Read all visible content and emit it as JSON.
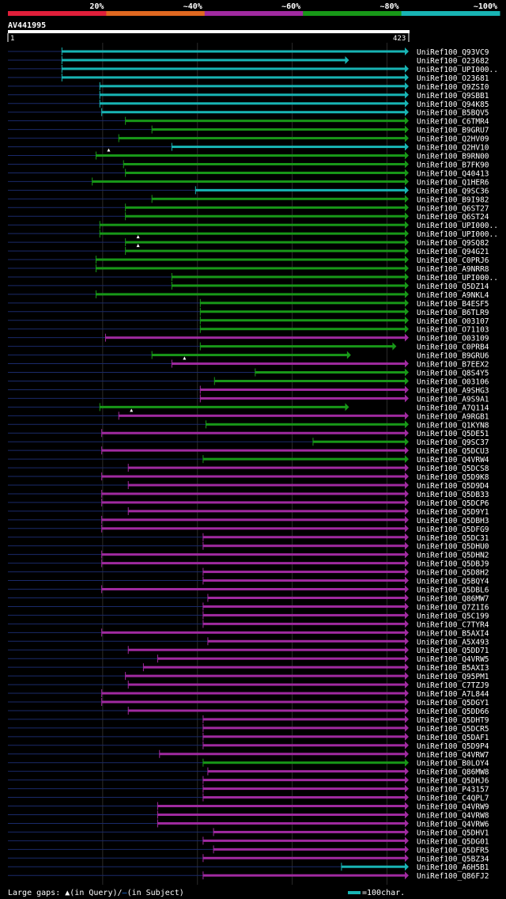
{
  "query": {
    "id": "AV441995",
    "start": "1",
    "end": "423",
    "length": 423
  },
  "identity_scale": {
    "labels": [
      "20%",
      "~40%",
      "~60%",
      "~80%",
      "~100%"
    ],
    "colors": [
      "#e01f3a",
      "#e06820",
      "#a02aa0",
      "#189818",
      "#18b4b4"
    ]
  },
  "legend": {
    "gaps_text": "Large gaps: ",
    "in_query": "(in Query)",
    "slash": "/",
    "in_subject": "(in Subject)",
    "scale_text": "=100char."
  },
  "hits": [
    {
      "name": "UniRef100_Q93VC9",
      "start": 57,
      "end": 423,
      "color": "cyan"
    },
    {
      "name": "UniRef100_O23682",
      "start": 57,
      "end": 360,
      "color": "cyan"
    },
    {
      "name": "UniRef100_UPI000..",
      "start": 57,
      "end": 423,
      "color": "cyan"
    },
    {
      "name": "UniRef100_O23681",
      "start": 57,
      "end": 423,
      "color": "cyan"
    },
    {
      "name": "UniRef100_Q9ZSI0",
      "start": 97,
      "end": 423,
      "color": "cyan"
    },
    {
      "name": "UniRef100_Q9SBB1",
      "start": 97,
      "end": 423,
      "color": "cyan"
    },
    {
      "name": "UniRef100_Q94K85",
      "start": 97,
      "end": 423,
      "color": "cyan"
    },
    {
      "name": "UniRef100_B5BQV5",
      "start": 99,
      "end": 423,
      "color": "cyan"
    },
    {
      "name": "UniRef100_C6TMR4",
      "start": 124,
      "end": 423,
      "color": "green"
    },
    {
      "name": "UniRef100_B9GRU7",
      "start": 152,
      "end": 423,
      "color": "green"
    },
    {
      "name": "UniRef100_Q2HV09",
      "start": 117,
      "end": 423,
      "color": "green"
    },
    {
      "name": "UniRef100_Q2HV10",
      "start": 173,
      "end": 423,
      "color": "cyan"
    },
    {
      "name": "UniRef100_B9RN00",
      "start": 93,
      "end": 423,
      "color": "green"
    },
    {
      "name": "UniRef100_B7FK90",
      "start": 122,
      "end": 423,
      "color": "green"
    },
    {
      "name": "UniRef100_Q40413",
      "start": 124,
      "end": 423,
      "color": "green"
    },
    {
      "name": "UniRef100_Q1HER6",
      "start": 89,
      "end": 423,
      "color": "green"
    },
    {
      "name": "UniRef100_Q9SC36",
      "start": 198,
      "end": 423,
      "color": "cyan"
    },
    {
      "name": "UniRef100_B9I982",
      "start": 152,
      "end": 423,
      "color": "green"
    },
    {
      "name": "UniRef100_Q6ST27",
      "start": 124,
      "end": 423,
      "color": "green"
    },
    {
      "name": "UniRef100_Q6ST24",
      "start": 124,
      "end": 423,
      "color": "green"
    },
    {
      "name": "UniRef100_UPI000..",
      "start": 97,
      "end": 423,
      "color": "green"
    },
    {
      "name": "UniRef100_UPI000..",
      "start": 97,
      "end": 423,
      "color": "green"
    },
    {
      "name": "UniRef100_Q9SQ82",
      "start": 124,
      "end": 423,
      "color": "green"
    },
    {
      "name": "UniRef100_Q94G21",
      "start": 124,
      "end": 423,
      "color": "green"
    },
    {
      "name": "UniRef100_C0PRJ6",
      "start": 93,
      "end": 423,
      "color": "green"
    },
    {
      "name": "UniRef100_A9NRR8",
      "start": 93,
      "end": 423,
      "color": "green"
    },
    {
      "name": "UniRef100_UPI000..",
      "start": 173,
      "end": 423,
      "color": "green"
    },
    {
      "name": "UniRef100_Q5DZ14",
      "start": 173,
      "end": 423,
      "color": "green"
    },
    {
      "name": "UniRef100_A9NKL4",
      "start": 93,
      "end": 423,
      "color": "green"
    },
    {
      "name": "UniRef100_B4ESF5",
      "start": 203,
      "end": 423,
      "color": "green"
    },
    {
      "name": "UniRef100_B6TLR9",
      "start": 203,
      "end": 423,
      "color": "green"
    },
    {
      "name": "UniRef100_O03107",
      "start": 203,
      "end": 423,
      "color": "green"
    },
    {
      "name": "UniRef100_O71103",
      "start": 203,
      "end": 423,
      "color": "green"
    },
    {
      "name": "UniRef100_O03109",
      "start": 103,
      "end": 423,
      "color": "purple"
    },
    {
      "name": "UniRef100_C0PRB4",
      "start": 203,
      "end": 410,
      "color": "green"
    },
    {
      "name": "UniRef100_B9GRU6",
      "start": 152,
      "end": 362,
      "color": "green"
    },
    {
      "name": "UniRef100_B7EEX2",
      "start": 173,
      "end": 423,
      "color": "purple"
    },
    {
      "name": "UniRef100_Q8S4Y5",
      "start": 261,
      "end": 423,
      "color": "green"
    },
    {
      "name": "UniRef100_O03106",
      "start": 218,
      "end": 423,
      "color": "green"
    },
    {
      "name": "UniRef100_A9SHG3",
      "start": 203,
      "end": 423,
      "color": "purple"
    },
    {
      "name": "UniRef100_A9S9A1",
      "start": 203,
      "end": 423,
      "color": "purple"
    },
    {
      "name": "UniRef100_A7Q114",
      "start": 97,
      "end": 360,
      "color": "green"
    },
    {
      "name": "UniRef100_A9RGB1",
      "start": 117,
      "end": 423,
      "color": "purple"
    },
    {
      "name": "UniRef100_Q1KYN8",
      "start": 209,
      "end": 423,
      "color": "green"
    },
    {
      "name": "UniRef100_Q5DE51",
      "start": 99,
      "end": 423,
      "color": "purple"
    },
    {
      "name": "UniRef100_Q9SC37",
      "start": 322,
      "end": 423,
      "color": "green"
    },
    {
      "name": "UniRef100_Q5DCU3",
      "start": 99,
      "end": 423,
      "color": "purple"
    },
    {
      "name": "UniRef100_Q4VRW4",
      "start": 206,
      "end": 423,
      "color": "green"
    },
    {
      "name": "UniRef100_Q5DCS8",
      "start": 127,
      "end": 423,
      "color": "purple"
    },
    {
      "name": "UniRef100_Q5D9K8",
      "start": 99,
      "end": 423,
      "color": "purple"
    },
    {
      "name": "UniRef100_Q5D9D4",
      "start": 127,
      "end": 423,
      "color": "purple"
    },
    {
      "name": "UniRef100_Q5DB33",
      "start": 99,
      "end": 423,
      "color": "purple"
    },
    {
      "name": "UniRef100_Q5DCP6",
      "start": 99,
      "end": 423,
      "color": "purple"
    },
    {
      "name": "UniRef100_Q5D9Y1",
      "start": 127,
      "end": 423,
      "color": "purple"
    },
    {
      "name": "UniRef100_Q5DBH3",
      "start": 99,
      "end": 423,
      "color": "purple"
    },
    {
      "name": "UniRef100_Q5DFG9",
      "start": 99,
      "end": 423,
      "color": "purple"
    },
    {
      "name": "UniRef100_Q5DC31",
      "start": 206,
      "end": 423,
      "color": "purple"
    },
    {
      "name": "UniRef100_Q5DHU0",
      "start": 206,
      "end": 423,
      "color": "purple"
    },
    {
      "name": "UniRef100_Q5DHN2",
      "start": 99,
      "end": 423,
      "color": "purple"
    },
    {
      "name": "UniRef100_Q5DBJ9",
      "start": 99,
      "end": 423,
      "color": "purple"
    },
    {
      "name": "UniRef100_Q5D8H2",
      "start": 206,
      "end": 423,
      "color": "purple"
    },
    {
      "name": "UniRef100_Q5BQY4",
      "start": 206,
      "end": 423,
      "color": "purple"
    },
    {
      "name": "UniRef100_Q5DBL6",
      "start": 99,
      "end": 423,
      "color": "purple"
    },
    {
      "name": "UniRef100_Q86MW7",
      "start": 211,
      "end": 423,
      "color": "purple"
    },
    {
      "name": "UniRef100_Q7Z1I6",
      "start": 206,
      "end": 423,
      "color": "purple"
    },
    {
      "name": "UniRef100_Q5C199",
      "start": 206,
      "end": 423,
      "color": "purple"
    },
    {
      "name": "UniRef100_C7TYR4",
      "start": 206,
      "end": 423,
      "color": "purple"
    },
    {
      "name": "UniRef100_B5AXI4",
      "start": 99,
      "end": 423,
      "color": "purple"
    },
    {
      "name": "UniRef100_A5X493",
      "start": 211,
      "end": 423,
      "color": "purple"
    },
    {
      "name": "UniRef100_Q5DD71",
      "start": 127,
      "end": 423,
      "color": "purple"
    },
    {
      "name": "UniRef100_Q4VRW5",
      "start": 158,
      "end": 423,
      "color": "purple"
    },
    {
      "name": "UniRef100_B5AXI3",
      "start": 143,
      "end": 423,
      "color": "purple"
    },
    {
      "name": "UniRef100_Q95PM1",
      "start": 124,
      "end": 423,
      "color": "purple"
    },
    {
      "name": "UniRef100_C7TZJ9",
      "start": 127,
      "end": 423,
      "color": "purple"
    },
    {
      "name": "UniRef100_A7L844",
      "start": 99,
      "end": 423,
      "color": "purple"
    },
    {
      "name": "UniRef100_Q5DGY1",
      "start": 99,
      "end": 423,
      "color": "purple"
    },
    {
      "name": "UniRef100_Q5DD66",
      "start": 127,
      "end": 423,
      "color": "purple"
    },
    {
      "name": "UniRef100_Q5DHT9",
      "start": 206,
      "end": 423,
      "color": "purple"
    },
    {
      "name": "UniRef100_Q5DCR5",
      "start": 206,
      "end": 423,
      "color": "purple"
    },
    {
      "name": "UniRef100_Q5DAF1",
      "start": 206,
      "end": 423,
      "color": "purple"
    },
    {
      "name": "UniRef100_Q5D9P4",
      "start": 206,
      "end": 423,
      "color": "purple"
    },
    {
      "name": "UniRef100_Q4VRW7",
      "start": 160,
      "end": 423,
      "color": "purple"
    },
    {
      "name": "UniRef100_B0LOY4",
      "start": 206,
      "end": 423,
      "color": "green"
    },
    {
      "name": "UniRef100_Q86MW8",
      "start": 211,
      "end": 423,
      "color": "purple"
    },
    {
      "name": "UniRef100_Q5DHJ6",
      "start": 206,
      "end": 423,
      "color": "purple"
    },
    {
      "name": "UniRef100_P43157",
      "start": 206,
      "end": 423,
      "color": "purple"
    },
    {
      "name": "UniRef100_C4QPL7",
      "start": 206,
      "end": 423,
      "color": "purple"
    },
    {
      "name": "UniRef100_Q4VRW9",
      "start": 158,
      "end": 423,
      "color": "purple"
    },
    {
      "name": "UniRef100_Q4VRW8",
      "start": 158,
      "end": 423,
      "color": "purple"
    },
    {
      "name": "UniRef100_Q4VRW6",
      "start": 158,
      "end": 423,
      "color": "purple"
    },
    {
      "name": "UniRef100_Q5DHV1",
      "start": 217,
      "end": 423,
      "color": "purple"
    },
    {
      "name": "UniRef100_Q5DG01",
      "start": 206,
      "end": 423,
      "color": "purple"
    },
    {
      "name": "UniRef100_Q5DFR5",
      "start": 217,
      "end": 423,
      "color": "purple"
    },
    {
      "name": "UniRef100_Q5BZ34",
      "start": 206,
      "end": 423,
      "color": "purple"
    },
    {
      "name": "UniRef100_A6H5B1",
      "start": 352,
      "end": 423,
      "color": "cyan"
    },
    {
      "name": "UniRef100_Q86FJ2",
      "start": 206,
      "end": 423,
      "color": "purple"
    }
  ],
  "hit_colors": {
    "cyan": "#18b4b4",
    "green": "#189818",
    "purple": "#a02aa0"
  },
  "gap_marks": [
    12,
    22,
    23,
    36,
    42
  ]
}
